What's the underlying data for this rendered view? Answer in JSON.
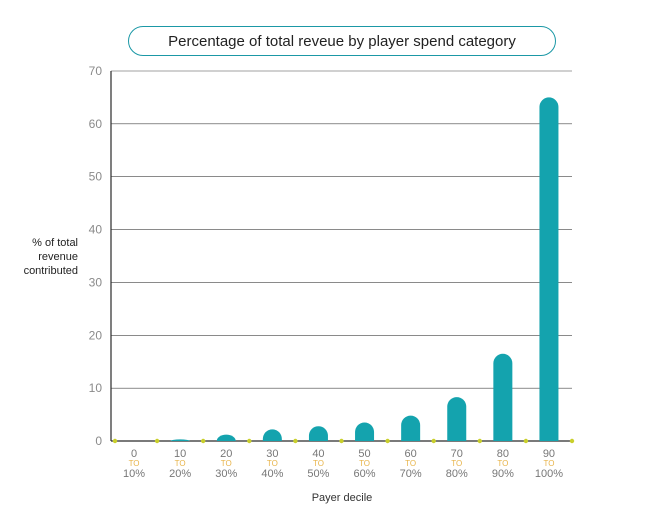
{
  "chart_data": {
    "type": "bar",
    "title": "Percentage of total reveue by player spend category",
    "xlabel": "Payer decile",
    "ylabel": [
      "% of total",
      "revenue",
      "contributed"
    ],
    "ylim": [
      0,
      70
    ],
    "yticks": [
      0,
      10,
      20,
      30,
      40,
      50,
      60,
      70
    ],
    "grid": true,
    "categories": [
      {
        "top": "0",
        "mid": "TO",
        "bottom": "10%"
      },
      {
        "top": "10",
        "mid": "TO",
        "bottom": "20%"
      },
      {
        "top": "20",
        "mid": "TO",
        "bottom": "30%"
      },
      {
        "top": "30",
        "mid": "TO",
        "bottom": "40%"
      },
      {
        "top": "40",
        "mid": "TO",
        "bottom": "50%"
      },
      {
        "top": "50",
        "mid": "TO",
        "bottom": "60%"
      },
      {
        "top": "60",
        "mid": "TO",
        "bottom": "70%"
      },
      {
        "top": "70",
        "mid": "TO",
        "bottom": "80%"
      },
      {
        "top": "80",
        "mid": "TO",
        "bottom": "90%"
      },
      {
        "top": "90",
        "mid": "TO",
        "bottom": "100%"
      }
    ],
    "values": [
      0,
      0.3,
      1.2,
      2.2,
      2.8,
      3.5,
      4.8,
      8.3,
      16.5,
      65
    ],
    "colors": {
      "bar": "#14a3ae",
      "accent_dot": "#c9cf2b",
      "grid": "#444444",
      "axis": "#2a2a2a"
    }
  }
}
